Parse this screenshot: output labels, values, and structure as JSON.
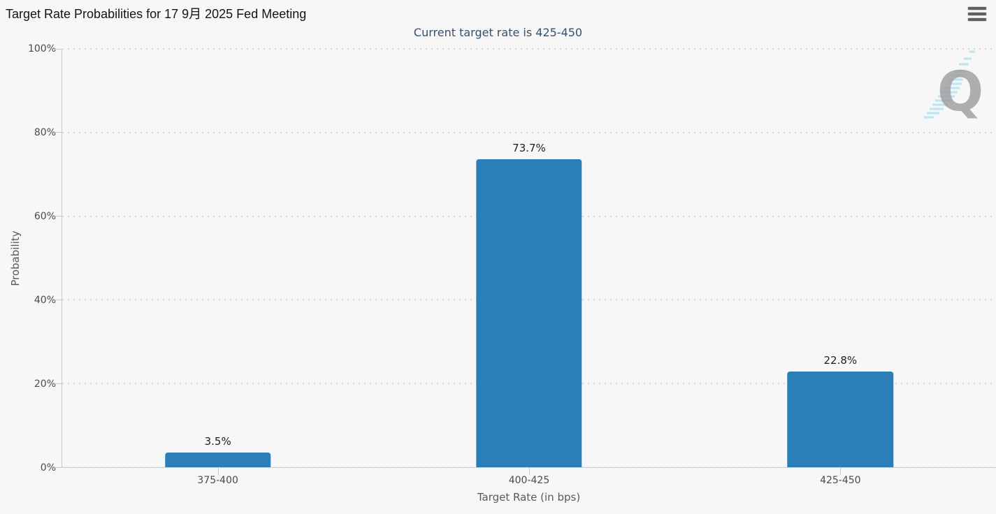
{
  "header": {
    "title": "Target Rate Probabilities for 17 9月 2025 Fed Meeting",
    "subtitle": "Current target rate is 425-450"
  },
  "menu": {
    "icon": "hamburger-menu-icon",
    "tooltip": "Chart context menu"
  },
  "chart_data": {
    "type": "bar",
    "title": "Target Rate Probabilities for 17 9月 2025 Fed Meeting",
    "subtitle": "Current target rate is 425-450",
    "categories": [
      "375-400",
      "400-425",
      "425-450"
    ],
    "values": [
      3.5,
      73.7,
      22.8
    ],
    "value_labels": [
      "3.5%",
      "73.7%",
      "22.8%"
    ],
    "xlabel": "Target Rate (in bps)",
    "ylabel": "Probability",
    "ylim": [
      0,
      100
    ],
    "yticks": [
      0,
      20,
      40,
      60,
      80,
      100
    ],
    "ytick_labels": [
      "0%",
      "20%",
      "40%",
      "60%",
      "80%",
      "100%"
    ],
    "grid": "horizontal-dotted",
    "legend": "none",
    "bar_color": "#2b7fb8"
  },
  "watermark": {
    "letter": "Q",
    "name": "quikstrike-logo"
  },
  "colors": {
    "background": "#f7f7f7",
    "bar": "#2b7fb8",
    "axis": "#c9c9c9",
    "grid_dots": "#d9d9d9",
    "title": "#141414",
    "subtitle": "#34506e",
    "tick_label": "#4a4a4a",
    "axis_title": "#5a5a5a",
    "watermark_gray": "#9c9c9c",
    "watermark_blue": "#b9e6f2"
  }
}
